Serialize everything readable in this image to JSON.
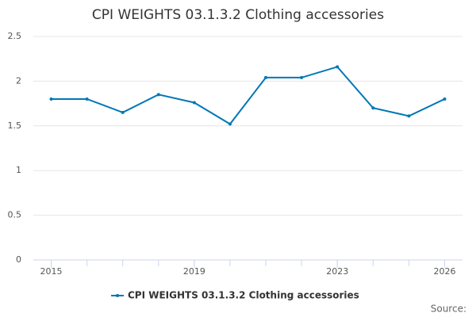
{
  "chart_data": {
    "type": "line",
    "title": "CPI WEIGHTS 03.1.3.2 Clothing accessories",
    "x": [
      2015,
      2016,
      2017,
      2018,
      2019,
      2020,
      2021,
      2022,
      2023,
      2024,
      2025,
      2026
    ],
    "series": [
      {
        "name": "CPI WEIGHTS 03.1.3.2 Clothing accessories",
        "color": "#0077b6",
        "values": [
          1.8,
          1.8,
          1.65,
          1.85,
          1.76,
          1.52,
          2.04,
          2.04,
          2.16,
          1.7,
          1.61,
          1.8
        ]
      }
    ],
    "xlim": [
      2014.5,
      2026.5
    ],
    "xticks": [
      2015,
      2019,
      2023,
      2026
    ],
    "ylim": [
      0,
      2.5
    ],
    "yticks": [
      0,
      0.5,
      1,
      1.5,
      2,
      2.5
    ],
    "grid": true,
    "legend": "bottom",
    "source": "Source:"
  }
}
